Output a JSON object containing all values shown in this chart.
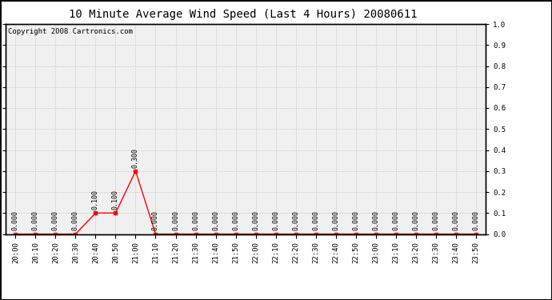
{
  "title": "10 Minute Average Wind Speed (Last 4 Hours) 20080611",
  "copyright": "Copyright 2008 Cartronics.com",
  "x_labels": [
    "20:00",
    "20:10",
    "20:20",
    "20:30",
    "20:40",
    "20:50",
    "21:00",
    "21:10",
    "21:20",
    "21:30",
    "21:40",
    "21:50",
    "22:00",
    "22:10",
    "22:20",
    "22:30",
    "22:40",
    "22:50",
    "23:00",
    "23:10",
    "23:20",
    "23:30",
    "23:40",
    "23:50"
  ],
  "y_values": [
    0.0,
    0.0,
    0.0,
    0.0,
    0.1,
    0.1,
    0.3,
    0.0,
    0.0,
    0.0,
    0.0,
    0.0,
    0.0,
    0.0,
    0.0,
    0.0,
    0.0,
    0.0,
    0.0,
    0.0,
    0.0,
    0.0,
    0.0,
    0.0
  ],
  "line_color": "#ff0000",
  "marker": "s",
  "marker_size": 2.5,
  "ylim": [
    0.0,
    1.0
  ],
  "yticks": [
    0.0,
    0.1,
    0.2,
    0.3,
    0.4,
    0.5,
    0.6,
    0.7,
    0.8,
    0.9,
    1.0
  ],
  "bg_color": "#ffffff",
  "plot_bg_color": "#f0f0f0",
  "grid_color": "#cccccc",
  "title_fontsize": 10,
  "annotation_fontsize": 6,
  "tick_fontsize": 6.5,
  "copyright_fontsize": 6.5
}
